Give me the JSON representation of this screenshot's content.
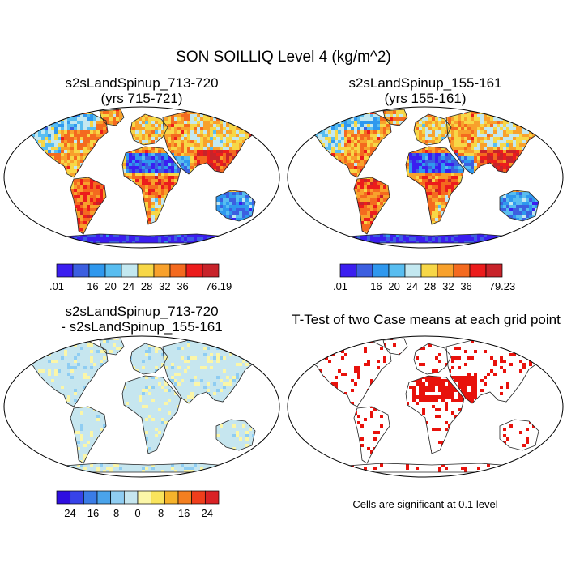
{
  "title": "SON SOILLIQ Level 4 (kg/m^2)",
  "chart_data": [
    {
      "type": "heatmap",
      "title_line1": "s2sLandSpinup_713-720",
      "title_line2": "(yrs 715-721)",
      "colorbar": {
        "colors": [
          "#3b1ef0",
          "#3c5fe0",
          "#2f98ee",
          "#58bdf0",
          "#c3e8f0",
          "#f7d747",
          "#f8a12c",
          "#f46a1f",
          "#ec1c1c",
          "#c8232a"
        ],
        "labels": [
          ".01",
          "",
          "16",
          "20",
          "24",
          "28",
          "32",
          "36",
          "",
          "76.19"
        ]
      }
    },
    {
      "type": "heatmap",
      "title_line1": "s2sLandSpinup_155-161",
      "title_line2": "(yrs 155-161)",
      "colorbar": {
        "colors": [
          "#3b1ef0",
          "#3c5fe0",
          "#2f98ee",
          "#58bdf0",
          "#c3e8f0",
          "#f7d747",
          "#f8a12c",
          "#f46a1f",
          "#ec1c1c",
          "#c8232a"
        ],
        "labels": [
          ".01",
          "",
          "16",
          "20",
          "24",
          "28",
          "32",
          "36",
          "",
          "79.23"
        ]
      }
    },
    {
      "type": "heatmap",
      "title_line1": "s2sLandSpinup_713-720",
      "title_line2": "- s2sLandSpinup_155-161",
      "colorbar": {
        "colors": [
          "#2e0ee0",
          "#3743e8",
          "#3a7ce6",
          "#4aa3ea",
          "#8fcdf2",
          "#c6e6ef",
          "#fbf6a8",
          "#f9e45c",
          "#f6b32b",
          "#f37f20",
          "#ef3e1c",
          "#d92225"
        ],
        "labels": [
          "",
          "-24",
          "",
          "-16",
          "",
          "-8",
          "",
          "0",
          "",
          "8",
          "",
          "16",
          "",
          "24",
          ""
        ]
      }
    },
    {
      "type": "heatmap",
      "title_line1": "T-Test of two Case means at each grid point",
      "significance_color": "#e8120c"
    }
  ],
  "note": "Cells are significant at 0.1 level"
}
